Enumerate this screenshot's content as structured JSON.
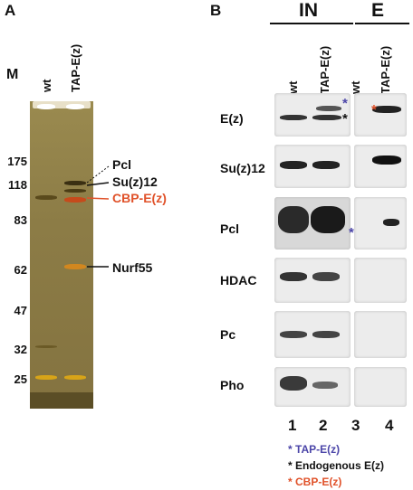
{
  "panelA": {
    "letter": "A",
    "marker_header": "M",
    "lanes": [
      "wt",
      "TAP-E(z)"
    ],
    "markers": [
      "175",
      "118",
      "83",
      "62",
      "47",
      "32",
      "25"
    ],
    "proteins": [
      "Pcl",
      "Su(z)12",
      "CBP-E(z)",
      "Nurf55"
    ]
  },
  "panelB": {
    "letter": "B",
    "group_in": "IN",
    "group_e": "E",
    "lanes": [
      "wt",
      "TAP-E(z)",
      "wt",
      "TAP-E(z)"
    ],
    "lane_numbers": [
      "1",
      "2",
      "3",
      "4"
    ],
    "rows": [
      "E(z)",
      "Su(z)12",
      "Pcl",
      "HDAC",
      "Pc",
      "Pho"
    ],
    "star_glyph": "*",
    "legend": [
      {
        "star": "*",
        "label": "TAP-E(z)",
        "color": "#4b45a8"
      },
      {
        "star": "*",
        "label": "Endogenous E(z)",
        "color": "#111111"
      },
      {
        "star": "*",
        "label": "CBP-E(z)",
        "color": "#e0522a"
      }
    ]
  },
  "colors": {
    "accent_red": "#e0522a",
    "accent_blue": "#4b45a8"
  }
}
